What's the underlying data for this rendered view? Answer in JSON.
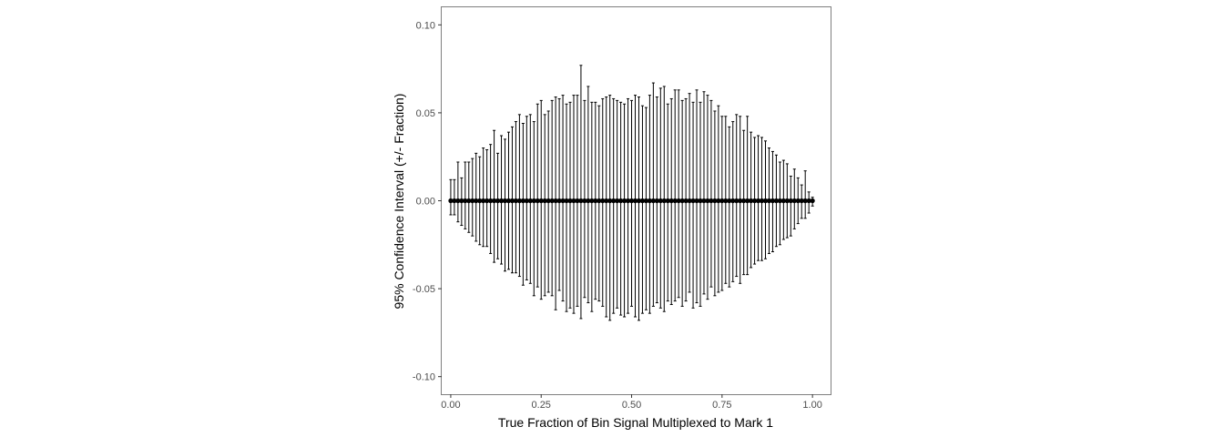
{
  "chart_data": {
    "type": "scatter",
    "title": "",
    "xlabel": "True Fraction of Bin Signal Multiplexed to Mark 1",
    "ylabel": "95% Confidence Interval (+/- Fraction)",
    "xlim": [
      -0.025,
      1.05
    ],
    "ylim": [
      -0.11,
      0.11
    ],
    "x_ticks": [
      0,
      0.25,
      0.5,
      0.75,
      1
    ],
    "x_tick_labels": [
      "0.00",
      "0.25",
      "0.50",
      "0.75",
      "1.00"
    ],
    "y_ticks": [
      -0.1,
      -0.05,
      0,
      0.05,
      0.1
    ],
    "y_tick_labels": [
      "-0.10",
      "-0.05",
      "0.00",
      "0.05",
      "0.10"
    ],
    "grid": false,
    "legend": "none",
    "colors": {
      "point": "#000000",
      "errorbar": "#000000",
      "panel_border": "#7f7f7f",
      "background": "#ffffff"
    },
    "series": [
      {
        "x_start": 0.0,
        "x_step": 0.01,
        "y": [
          0,
          0,
          0,
          0,
          0,
          0,
          0,
          0,
          0,
          0,
          0,
          0,
          0,
          0,
          0,
          0,
          0,
          0,
          0,
          0,
          0,
          0,
          0,
          0,
          0,
          0,
          0,
          0,
          0,
          0,
          0,
          0,
          0,
          0,
          0,
          0,
          0,
          0,
          0,
          0,
          0,
          0,
          0,
          0,
          0,
          0,
          0,
          0,
          0,
          0,
          0,
          0,
          0,
          0,
          0,
          0,
          0,
          0,
          0,
          0,
          0,
          0,
          0,
          0,
          0,
          0,
          0,
          0,
          0,
          0,
          0,
          0,
          0,
          0,
          0,
          0,
          0,
          0,
          0,
          0,
          0,
          0,
          0,
          0,
          0,
          0,
          0,
          0,
          0,
          0,
          0,
          0,
          0,
          0,
          0,
          0,
          0,
          0,
          0,
          0,
          0
        ],
        "ymax": [
          0.012,
          0.012,
          0.022,
          0.013,
          0.022,
          0.022,
          0.024,
          0.027,
          0.025,
          0.03,
          0.029,
          0.032,
          0.04,
          0.027,
          0.037,
          0.035,
          0.039,
          0.042,
          0.045,
          0.049,
          0.044,
          0.048,
          0.049,
          0.045,
          0.055,
          0.057,
          0.049,
          0.051,
          0.057,
          0.059,
          0.058,
          0.06,
          0.055,
          0.056,
          0.06,
          0.06,
          0.077,
          0.057,
          0.065,
          0.056,
          0.056,
          0.054,
          0.058,
          0.059,
          0.06,
          0.058,
          0.057,
          0.056,
          0.055,
          0.058,
          0.057,
          0.06,
          0.059,
          0.054,
          0.053,
          0.06,
          0.067,
          0.059,
          0.064,
          0.065,
          0.055,
          0.058,
          0.063,
          0.063,
          0.057,
          0.058,
          0.061,
          0.056,
          0.063,
          0.056,
          0.062,
          0.06,
          0.057,
          0.051,
          0.054,
          0.048,
          0.048,
          0.042,
          0.045,
          0.049,
          0.048,
          0.04,
          0.048,
          0.039,
          0.036,
          0.037,
          0.036,
          0.034,
          0.03,
          0.028,
          0.026,
          0.022,
          0.023,
          0.021,
          0.014,
          0.018,
          0.013,
          0.009,
          0.017,
          0.005,
          0.002
        ],
        "ymin": [
          -0.008,
          -0.008,
          -0.012,
          -0.014,
          -0.016,
          -0.018,
          -0.02,
          -0.023,
          -0.025,
          -0.026,
          -0.026,
          -0.03,
          -0.035,
          -0.033,
          -0.036,
          -0.04,
          -0.039,
          -0.041,
          -0.041,
          -0.043,
          -0.048,
          -0.045,
          -0.047,
          -0.054,
          -0.049,
          -0.056,
          -0.054,
          -0.052,
          -0.054,
          -0.062,
          -0.051,
          -0.057,
          -0.063,
          -0.061,
          -0.064,
          -0.06,
          -0.067,
          -0.055,
          -0.058,
          -0.063,
          -0.056,
          -0.057,
          -0.06,
          -0.066,
          -0.068,
          -0.064,
          -0.061,
          -0.065,
          -0.066,
          -0.064,
          -0.06,
          -0.066,
          -0.068,
          -0.064,
          -0.062,
          -0.064,
          -0.06,
          -0.058,
          -0.061,
          -0.063,
          -0.057,
          -0.059,
          -0.057,
          -0.055,
          -0.06,
          -0.057,
          -0.052,
          -0.061,
          -0.058,
          -0.06,
          -0.053,
          -0.056,
          -0.049,
          -0.054,
          -0.052,
          -0.051,
          -0.047,
          -0.049,
          -0.046,
          -0.043,
          -0.047,
          -0.042,
          -0.042,
          -0.038,
          -0.036,
          -0.034,
          -0.034,
          -0.033,
          -0.03,
          -0.029,
          -0.026,
          -0.025,
          -0.022,
          -0.021,
          -0.02,
          -0.016,
          -0.013,
          -0.01,
          -0.01,
          -0.007,
          -0.003
        ]
      }
    ]
  }
}
